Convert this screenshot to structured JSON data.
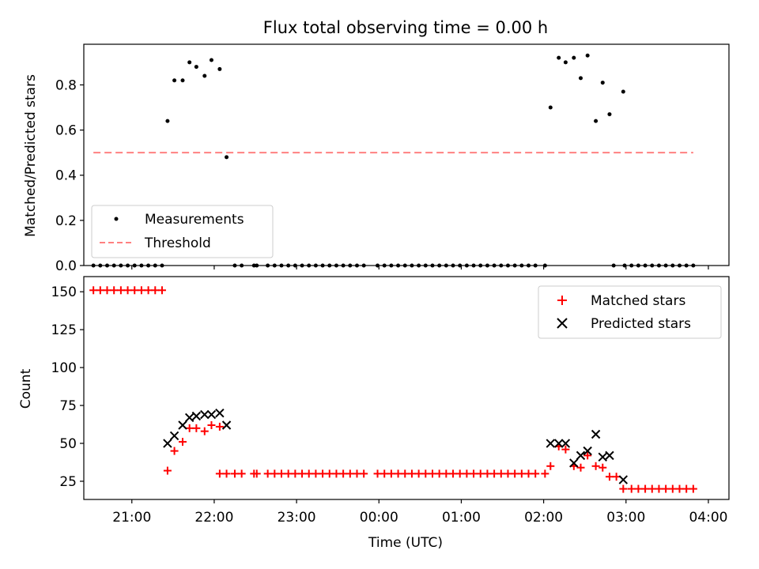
{
  "chart_data": [
    {
      "type": "scatter",
      "title": "Flux total observing time = 0.00 h",
      "xlabel": "",
      "ylabel": "Matched/Predicted stars",
      "ylim": [
        0,
        0.98
      ],
      "xlim": [
        "20:25",
        "04:15"
      ],
      "x_ticks": [
        "21:00",
        "22:00",
        "23:00",
        "00:00",
        "01:00",
        "02:00",
        "03:00",
        "04:00"
      ],
      "x_ticklabels_shown": false,
      "y_ticks": [
        0.0,
        0.2,
        0.4,
        0.6,
        0.8
      ],
      "y_ticklabels": [
        "0.0",
        "0.2",
        "0.4",
        "0.6",
        "0.8"
      ],
      "legend_position": "lower-left",
      "series": [
        {
          "name": "Measurements",
          "marker": "dot",
          "color": "#000000",
          "points": [
            [
              "20:32",
              0
            ],
            [
              "20:37",
              0
            ],
            [
              "20:42",
              0
            ],
            [
              "20:47",
              0
            ],
            [
              "20:52",
              0
            ],
            [
              "20:57",
              0
            ],
            [
              "21:02",
              0
            ],
            [
              "21:07",
              0
            ],
            [
              "21:12",
              0
            ],
            [
              "21:17",
              0
            ],
            [
              "21:22",
              0
            ],
            [
              "21:26",
              0.64
            ],
            [
              "21:31",
              0.82
            ],
            [
              "21:37",
              0.82
            ],
            [
              "21:42",
              0.9
            ],
            [
              "21:47",
              0.88
            ],
            [
              "21:53",
              0.84
            ],
            [
              "21:58",
              0.91
            ],
            [
              "22:04",
              0.87
            ],
            [
              "22:09",
              0.48
            ],
            [
              "22:15",
              0
            ],
            [
              "22:20",
              0
            ],
            [
              "22:29",
              0
            ],
            [
              "22:31",
              0
            ],
            [
              "22:39",
              0
            ],
            [
              "22:44",
              0
            ],
            [
              "22:49",
              0
            ],
            [
              "22:54",
              0
            ],
            [
              "22:59",
              0
            ],
            [
              "23:04",
              0
            ],
            [
              "23:09",
              0
            ],
            [
              "23:14",
              0
            ],
            [
              "23:19",
              0
            ],
            [
              "23:24",
              0
            ],
            [
              "23:29",
              0
            ],
            [
              "23:34",
              0
            ],
            [
              "23:39",
              0
            ],
            [
              "23:44",
              0
            ],
            [
              "23:49",
              0
            ],
            [
              "23:59",
              0
            ],
            [
              "00:04",
              0
            ],
            [
              "00:09",
              0
            ],
            [
              "00:14",
              0
            ],
            [
              "00:19",
              0
            ],
            [
              "00:24",
              0
            ],
            [
              "00:29",
              0
            ],
            [
              "00:34",
              0
            ],
            [
              "00:39",
              0
            ],
            [
              "00:44",
              0
            ],
            [
              "00:49",
              0
            ],
            [
              "00:54",
              0
            ],
            [
              "00:59",
              0
            ],
            [
              "01:04",
              0
            ],
            [
              "01:09",
              0
            ],
            [
              "01:14",
              0
            ],
            [
              "01:19",
              0
            ],
            [
              "01:24",
              0
            ],
            [
              "01:29",
              0
            ],
            [
              "01:34",
              0
            ],
            [
              "01:39",
              0
            ],
            [
              "01:44",
              0
            ],
            [
              "01:49",
              0
            ],
            [
              "01:54",
              0
            ],
            [
              "02:01",
              0
            ],
            [
              "02:05",
              0.7
            ],
            [
              "02:11",
              0.92
            ],
            [
              "02:16",
              0.9
            ],
            [
              "02:22",
              0.92
            ],
            [
              "02:27",
              0.83
            ],
            [
              "02:32",
              0.93
            ],
            [
              "02:38",
              0.64
            ],
            [
              "02:43",
              0.81
            ],
            [
              "02:48",
              0.67
            ],
            [
              "02:58",
              0.77
            ],
            [
              "02:51",
              0
            ],
            [
              "02:59",
              0
            ],
            [
              "03:04",
              0
            ],
            [
              "03:09",
              0
            ],
            [
              "03:14",
              0
            ],
            [
              "03:19",
              0
            ],
            [
              "03:24",
              0
            ],
            [
              "03:29",
              0
            ],
            [
              "03:34",
              0
            ],
            [
              "03:39",
              0
            ],
            [
              "03:44",
              0
            ],
            [
              "03:49",
              0
            ]
          ]
        },
        {
          "name": "Threshold",
          "marker": "dashed-line",
          "color": "#ff8080",
          "y": 0.5,
          "x_range": [
            "20:32",
            "03:49"
          ]
        }
      ]
    },
    {
      "type": "scatter",
      "title": "",
      "xlabel": "Time (UTC)",
      "ylabel": "Count",
      "ylim": [
        13,
        160
      ],
      "xlim": [
        "20:25",
        "04:15"
      ],
      "x_ticks": [
        "21:00",
        "22:00",
        "23:00",
        "00:00",
        "01:00",
        "02:00",
        "03:00",
        "04:00"
      ],
      "x_ticklabels": [
        "21:00",
        "22:00",
        "23:00",
        "00:00",
        "01:00",
        "02:00",
        "03:00",
        "04:00"
      ],
      "y_ticks": [
        25,
        50,
        75,
        100,
        125,
        150
      ],
      "y_ticklabels": [
        "25",
        "50",
        "75",
        "100",
        "125",
        "150"
      ],
      "legend_position": "top-right",
      "series": [
        {
          "name": "Matched stars",
          "marker": "plus",
          "color": "#ff0000",
          "points": [
            [
              "20:32",
              151
            ],
            [
              "20:37",
              151
            ],
            [
              "20:42",
              151
            ],
            [
              "20:47",
              151
            ],
            [
              "20:52",
              151
            ],
            [
              "20:57",
              151
            ],
            [
              "21:02",
              151
            ],
            [
              "21:07",
              151
            ],
            [
              "21:12",
              151
            ],
            [
              "21:17",
              151
            ],
            [
              "21:22",
              151
            ],
            [
              "21:26",
              32
            ],
            [
              "21:31",
              45
            ],
            [
              "21:37",
              51
            ],
            [
              "21:42",
              60
            ],
            [
              "21:47",
              60
            ],
            [
              "21:53",
              58
            ],
            [
              "21:58",
              62
            ],
            [
              "22:04",
              61
            ],
            [
              "22:04",
              30
            ],
            [
              "22:09",
              30
            ],
            [
              "22:15",
              30
            ],
            [
              "22:20",
              30
            ],
            [
              "22:29",
              30
            ],
            [
              "22:31",
              30
            ],
            [
              "22:39",
              30
            ],
            [
              "22:44",
              30
            ],
            [
              "22:49",
              30
            ],
            [
              "22:54",
              30
            ],
            [
              "22:59",
              30
            ],
            [
              "23:04",
              30
            ],
            [
              "23:09",
              30
            ],
            [
              "23:14",
              30
            ],
            [
              "23:19",
              30
            ],
            [
              "23:24",
              30
            ],
            [
              "23:29",
              30
            ],
            [
              "23:34",
              30
            ],
            [
              "23:39",
              30
            ],
            [
              "23:44",
              30
            ],
            [
              "23:49",
              30
            ],
            [
              "23:59",
              30
            ],
            [
              "00:04",
              30
            ],
            [
              "00:09",
              30
            ],
            [
              "00:14",
              30
            ],
            [
              "00:19",
              30
            ],
            [
              "00:24",
              30
            ],
            [
              "00:29",
              30
            ],
            [
              "00:34",
              30
            ],
            [
              "00:39",
              30
            ],
            [
              "00:44",
              30
            ],
            [
              "00:49",
              30
            ],
            [
              "00:54",
              30
            ],
            [
              "00:59",
              30
            ],
            [
              "01:04",
              30
            ],
            [
              "01:09",
              30
            ],
            [
              "01:14",
              30
            ],
            [
              "01:19",
              30
            ],
            [
              "01:24",
              30
            ],
            [
              "01:29",
              30
            ],
            [
              "01:34",
              30
            ],
            [
              "01:39",
              30
            ],
            [
              "01:44",
              30
            ],
            [
              "01:49",
              30
            ],
            [
              "01:54",
              30
            ],
            [
              "02:01",
              30
            ],
            [
              "02:05",
              35
            ],
            [
              "02:11",
              48
            ],
            [
              "02:16",
              46
            ],
            [
              "02:22",
              35
            ],
            [
              "02:27",
              34
            ],
            [
              "02:32",
              42
            ],
            [
              "02:38",
              35
            ],
            [
              "02:43",
              34
            ],
            [
              "02:48",
              28
            ],
            [
              "02:53",
              28
            ],
            [
              "02:58",
              20
            ],
            [
              "03:04",
              20
            ],
            [
              "03:09",
              20
            ],
            [
              "03:14",
              20
            ],
            [
              "03:19",
              20
            ],
            [
              "03:24",
              20
            ],
            [
              "03:29",
              20
            ],
            [
              "03:34",
              20
            ],
            [
              "03:39",
              20
            ],
            [
              "03:44",
              20
            ],
            [
              "03:49",
              20
            ]
          ]
        },
        {
          "name": "Predicted stars",
          "marker": "x",
          "color": "#000000",
          "points": [
            [
              "21:26",
              50
            ],
            [
              "21:31",
              55
            ],
            [
              "21:37",
              62
            ],
            [
              "21:42",
              67
            ],
            [
              "21:47",
              68
            ],
            [
              "21:53",
              69
            ],
            [
              "21:58",
              69
            ],
            [
              "22:04",
              70
            ],
            [
              "22:09",
              62
            ],
            [
              "02:05",
              50
            ],
            [
              "02:11",
              50
            ],
            [
              "02:16",
              50
            ],
            [
              "02:22",
              37
            ],
            [
              "02:27",
              42
            ],
            [
              "02:32",
              45
            ],
            [
              "02:38",
              56
            ],
            [
              "02:43",
              41
            ],
            [
              "02:48",
              42
            ],
            [
              "02:58",
              26
            ]
          ]
        }
      ]
    }
  ]
}
